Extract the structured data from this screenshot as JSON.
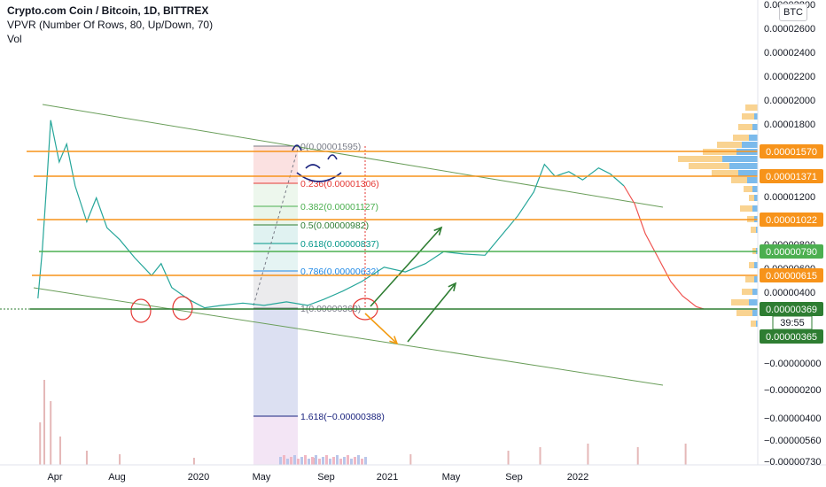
{
  "header": {
    "title": "Crypto.com Coin / Bitcoin, 1D, BITTREX",
    "indicator": "VPVR (Number Of Rows, 80, Up/Down, 70)",
    "volume_label": "Vol",
    "currency_button": "BTC"
  },
  "chart_data": {
    "type": "line",
    "x_ticks": [
      "Apr",
      "Aug",
      "2020",
      "May",
      "Sep",
      "2021",
      "May",
      "Sep",
      "2022"
    ],
    "y_ticks": [
      "0.00002800",
      "0.00002600",
      "0.00002400",
      "0.00002200",
      "0.00002000",
      "0.00001800",
      "0.00001600",
      "0.00001400",
      "0.00001200",
      "0.00001000",
      "0.00000800",
      "0.00000600",
      "0.00000400",
      "−0.00000000",
      "−0.00000200",
      "−0.00000400",
      "−0.00000560",
      "−0.00000730"
    ],
    "price_levels": [
      {
        "value": "0.00001570",
        "color": "#f7931a"
      },
      {
        "value": "0.00001371",
        "color": "#f7931a"
      },
      {
        "value": "0.00001022",
        "color": "#f7931a"
      },
      {
        "value": "0.00000790",
        "color": "#4caf50"
      },
      {
        "value": "0.00000615",
        "color": "#f7931a"
      },
      {
        "value": "0.00000369",
        "color": "#2e7d32"
      },
      {
        "value": "0.00000365",
        "color": "#2e7d32"
      }
    ],
    "countdown": "39:55",
    "fibonacci": [
      {
        "label": "0(0.00001595)",
        "color": "#787b86"
      },
      {
        "label": "0.236(0.00001306)",
        "color": "#e53935"
      },
      {
        "label": "0.382(0.00001127)",
        "color": "#4caf50"
      },
      {
        "label": "0.5(0.00000982)",
        "color": "#2e7d32"
      },
      {
        "label": "0.618(0.00000837)",
        "color": "#009688"
      },
      {
        "label": "0.786(0.00000632)",
        "color": "#1e88e5"
      },
      {
        "label": "1(0.00000369)",
        "color": "#787b86"
      },
      {
        "label": "1.618(−0.00000388)",
        "color": "#1a237e"
      }
    ],
    "price_series": [
      {
        "date": "2019-03-16",
        "price": 4.6e-06
      },
      {
        "date": "2019-03-20",
        "price": 8.5e-06
      },
      {
        "date": "2019-03-25",
        "price": 1.52e-05
      },
      {
        "date": "2019-03-28",
        "price": 1.95e-05
      },
      {
        "date": "2019-04-05",
        "price": 1.6e-05
      },
      {
        "date": "2019-04-12",
        "price": 1.75e-05
      },
      {
        "date": "2019-04-20",
        "price": 1.4e-05
      },
      {
        "date": "2019-05-01",
        "price": 1.1e-05
      },
      {
        "date": "2019-05-10",
        "price": 1.3e-05
      },
      {
        "date": "2019-05-20",
        "price": 1.05e-05
      },
      {
        "date": "2019-06-01",
        "price": 9.5e-06
      },
      {
        "date": "2019-06-15",
        "price": 8e-06
      },
      {
        "date": "2019-07-01",
        "price": 6.5e-06
      },
      {
        "date": "2019-07-10",
        "price": 7.5e-06
      },
      {
        "date": "2019-07-20",
        "price": 5.5e-06
      },
      {
        "date": "2019-08-05",
        "price": 4.5e-06
      },
      {
        "date": "2019-08-20",
        "price": 3.8e-06
      },
      {
        "date": "2019-09-05",
        "price": 4e-06
      },
      {
        "date": "2019-09-25",
        "price": 4.2e-06
      },
      {
        "date": "2019-10-15",
        "price": 4e-06
      },
      {
        "date": "2019-11-05",
        "price": 4.3e-06
      },
      {
        "date": "2019-11-25",
        "price": 4e-06
      },
      {
        "date": "2019-12-10",
        "price": 4.5e-06
      },
      {
        "date": "2019-12-28",
        "price": 5.2e-06
      },
      {
        "date": "2020-01-15",
        "price": 6e-06
      },
      {
        "date": "2020-02-05",
        "price": 7.2e-06
      },
      {
        "date": "2020-02-25",
        "price": 6.8e-06
      },
      {
        "date": "2020-03-15",
        "price": 7.5e-06
      },
      {
        "date": "2020-04-01",
        "price": 8.5e-06
      },
      {
        "date": "2020-04-20",
        "price": 8.3e-06
      },
      {
        "date": "2020-05-10",
        "price": 8.2e-06
      },
      {
        "date": "2020-05-25",
        "price": 9.8e-06
      },
      {
        "date": "2020-06-10",
        "price": 1.15e-05
      },
      {
        "date": "2020-06-25",
        "price": 1.35e-05
      },
      {
        "date": "2020-07-05",
        "price": 1.58e-05
      },
      {
        "date": "2020-07-15",
        "price": 1.48e-05
      },
      {
        "date": "2020-07-28",
        "price": 1.52e-05
      },
      {
        "date": "2020-08-10",
        "price": 1.45e-05
      },
      {
        "date": "2020-08-25",
        "price": 1.55e-05
      },
      {
        "date": "2020-09-05",
        "price": 1.5e-05
      },
      {
        "date": "2020-09-18",
        "price": 1.4e-05
      },
      {
        "date": "2020-09-28",
        "price": 1.25e-05
      },
      {
        "date": "2020-10-08",
        "price": 1e-05
      },
      {
        "date": "2020-10-20",
        "price": 8e-06
      },
      {
        "date": "2020-11-01",
        "price": 6e-06
      },
      {
        "date": "2020-11-12",
        "price": 4.8e-06
      },
      {
        "date": "2020-11-25",
        "price": 3.9e-06
      },
      {
        "date": "2020-12-02",
        "price": 3.7e-06
      }
    ],
    "volume_series": [
      {
        "date": "2019-03-18",
        "volume": 6
      },
      {
        "date": "2019-03-22",
        "volume": 12
      },
      {
        "date": "2019-03-28",
        "volume": 9
      },
      {
        "date": "2019-04-06",
        "volume": 4
      },
      {
        "date": "2019-05-01",
        "volume": 2
      },
      {
        "date": "2019-06-01",
        "volume": 1.5
      },
      {
        "date": "2019-08-10",
        "volume": 1
      },
      {
        "date": "2019-12-01",
        "volume": 1
      },
      {
        "date": "2020-03-01",
        "volume": 1.5
      },
      {
        "date": "2020-06-01",
        "volume": 2
      },
      {
        "date": "2020-07-01",
        "volume": 2.5
      },
      {
        "date": "2020-08-15",
        "volume": 3
      },
      {
        "date": "2020-10-01",
        "volume": 2.5
      },
      {
        "date": "2020-11-15",
        "volume": 3
      }
    ],
    "grid": false
  }
}
